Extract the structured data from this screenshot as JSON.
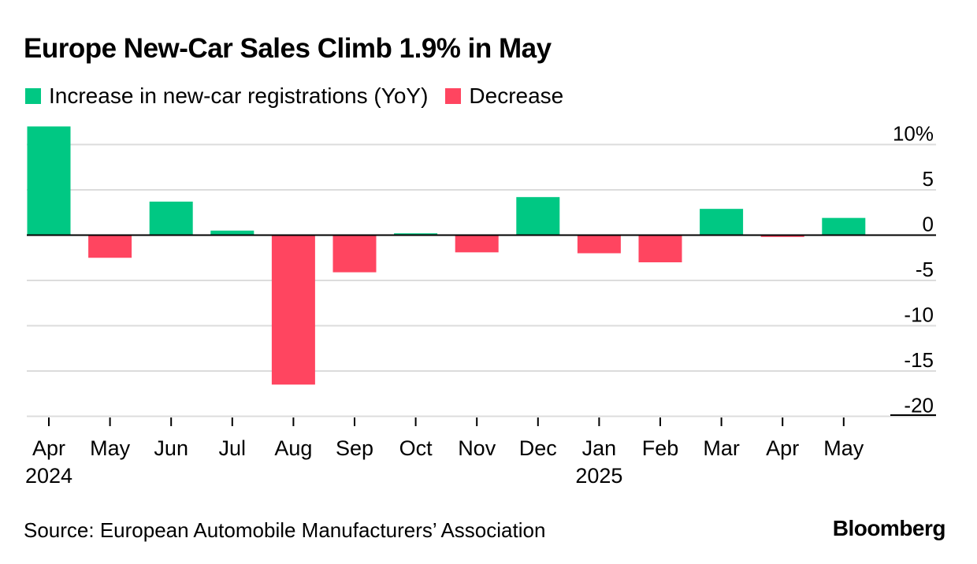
{
  "header": {
    "title": "Europe New-Car Sales Climb 1.9% in May"
  },
  "legend": {
    "items": [
      {
        "label": "Increase in new-car registrations (YoY)",
        "color": "#00c883"
      },
      {
        "label": "Decrease",
        "color": "#ff4560"
      }
    ]
  },
  "footer": {
    "source": "Source: European Automobile Manufacturers’ Association",
    "brand": "Bloomberg"
  },
  "chart_data": {
    "type": "bar",
    "categories": [
      "Apr",
      "May",
      "Jun",
      "Jul",
      "Aug",
      "Sep",
      "Oct",
      "Nov",
      "Dec",
      "Jan",
      "Feb",
      "Mar",
      "Apr",
      "May"
    ],
    "year_labels": [
      "2024",
      "",
      "",
      "",
      "",
      "",
      "",
      "",
      "",
      "2025",
      "",
      "",
      "",
      ""
    ],
    "values": [
      12.0,
      -2.5,
      3.7,
      0.5,
      -16.5,
      -4.1,
      0.2,
      -1.9,
      4.2,
      -2.0,
      -3.0,
      2.9,
      -0.2,
      1.9
    ],
    "ylim": [
      -20,
      10
    ],
    "yticks": [
      10,
      5,
      0,
      -5,
      -10,
      -15,
      -20
    ],
    "ytick_labels": [
      "10%",
      "5",
      "0",
      "-5",
      "-10",
      "-15",
      "-20"
    ],
    "colors": {
      "positive": "#00c883",
      "negative": "#ff4560",
      "grid": "#dcdcdc"
    },
    "grid": true,
    "legend_position": "top-left",
    "title": "Europe New-Car Sales Climb 1.9% in May",
    "xlabel": "",
    "ylabel": ""
  }
}
